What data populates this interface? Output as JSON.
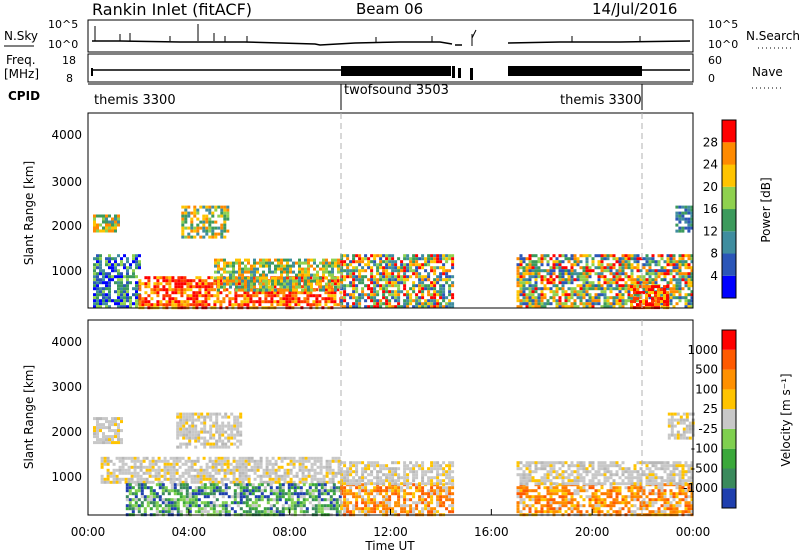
{
  "header": {
    "station": "Rankin Inlet (fitACF)",
    "beam": "Beam 06",
    "date": "14/Jul/2016"
  },
  "noise_panel": {
    "left_label": "N.Sky",
    "right_label": "N.Search",
    "left_ticks": [
      "10^5",
      "10^0"
    ],
    "right_ticks": [
      "10^5",
      "10^0"
    ]
  },
  "freq_panel": {
    "left_label_line1": "Freq.",
    "left_label_line2": "[MHz]",
    "right_label": "Nave",
    "left_ticks": [
      "18",
      "8"
    ],
    "right_ticks": [
      "60",
      "0"
    ]
  },
  "cpid": {
    "label": "CPID",
    "segments": [
      {
        "name": "themis 3300",
        "start_h": 0,
        "end_h": 10.0
      },
      {
        "name": "twofsound 3503",
        "start_h": 10.0,
        "end_h": 22.0
      },
      {
        "name": "themis 3300",
        "start_h": 22.0,
        "end_h": 24
      }
    ]
  },
  "chart_data": [
    {
      "type": "heatmap",
      "name": "power",
      "ylabel": "Slant Range [km]",
      "y_ticks": [
        "4000",
        "3000",
        "2000",
        "1000"
      ],
      "ylim": [
        180,
        4600
      ],
      "colorbar": {
        "label": "Power [dB]",
        "ticks": [
          "28",
          "24",
          "20",
          "16",
          "12",
          "8",
          "4"
        ],
        "colors": [
          "#0000ff",
          "#2b56b8",
          "#3f8d9f",
          "#3c9a5c",
          "#8fd14f",
          "#ffc400",
          "#ff8a00",
          "#ff0000"
        ]
      },
      "regions": [
        {
          "t": [
            0.2,
            2.0
          ],
          "r": [
            180,
            1400
          ],
          "level": "mixed-low"
        },
        {
          "t": [
            0.2,
            1.2
          ],
          "r": [
            1900,
            2300
          ],
          "level": "mid"
        },
        {
          "t": [
            3.7,
            5.6
          ],
          "r": [
            1800,
            2500
          ],
          "level": "mid"
        },
        {
          "t": [
            2.0,
            10.0
          ],
          "r": [
            180,
            900
          ],
          "level": "high"
        },
        {
          "t": [
            5.0,
            10.0
          ],
          "r": [
            600,
            1300
          ],
          "level": "mid"
        },
        {
          "t": [
            10.0,
            14.5
          ],
          "r": [
            180,
            1400
          ],
          "level": "mixed"
        },
        {
          "t": [
            17.0,
            24.0
          ],
          "r": [
            180,
            1400
          ],
          "level": "mixed"
        },
        {
          "t": [
            21.5,
            23.0
          ],
          "r": [
            180,
            700
          ],
          "level": "high"
        },
        {
          "t": [
            23.3,
            24.0
          ],
          "r": [
            1900,
            2500
          ],
          "level": "low"
        }
      ]
    },
    {
      "type": "heatmap",
      "name": "velocity",
      "ylabel": "Slant Range [km]",
      "xlabel": "Time UT",
      "y_ticks": [
        "4000",
        "3000",
        "2000",
        "1000"
      ],
      "ylim": [
        180,
        4600
      ],
      "x_ticks": [
        "00:00",
        "04:00",
        "08:00",
        "12:00",
        "16:00",
        "20:00",
        "00:00"
      ],
      "colorbar": {
        "label": "Velocity [m s⁻¹]",
        "ticks": [
          "1000",
          "500",
          "100",
          "25",
          "-25",
          "-100",
          "-500",
          "-1000"
        ],
        "colors": [
          "#1f3fae",
          "#3a8a5c",
          "#3aa83a",
          "#7fd04f",
          "#c8c8c8",
          "#ffc400",
          "#ff9000",
          "#ff5a00",
          "#ff0000"
        ]
      },
      "regions": [
        {
          "t": [
            0.2,
            1.3
          ],
          "r": [
            1800,
            2400
          ],
          "level": "gray"
        },
        {
          "t": [
            3.5,
            6.0
          ],
          "r": [
            1700,
            2500
          ],
          "level": "gray"
        },
        {
          "t": [
            0.5,
            10.0
          ],
          "r": [
            900,
            1500
          ],
          "level": "gray"
        },
        {
          "t": [
            1.5,
            10.0
          ],
          "r": [
            180,
            900
          ],
          "level": "green"
        },
        {
          "t": [
            10.0,
            14.5
          ],
          "r": [
            180,
            900
          ],
          "level": "orange"
        },
        {
          "t": [
            10.0,
            14.5
          ],
          "r": [
            900,
            1400
          ],
          "level": "gray"
        },
        {
          "t": [
            17.0,
            24.0
          ],
          "r": [
            180,
            900
          ],
          "level": "orange"
        },
        {
          "t": [
            17.0,
            24.0
          ],
          "r": [
            900,
            1400
          ],
          "level": "gray"
        },
        {
          "t": [
            23.0,
            24.0
          ],
          "r": [
            1900,
            2500
          ],
          "level": "gray"
        }
      ]
    }
  ],
  "colors": {
    "axis": "#000000",
    "dashed_marker": "#b0b0b0"
  }
}
